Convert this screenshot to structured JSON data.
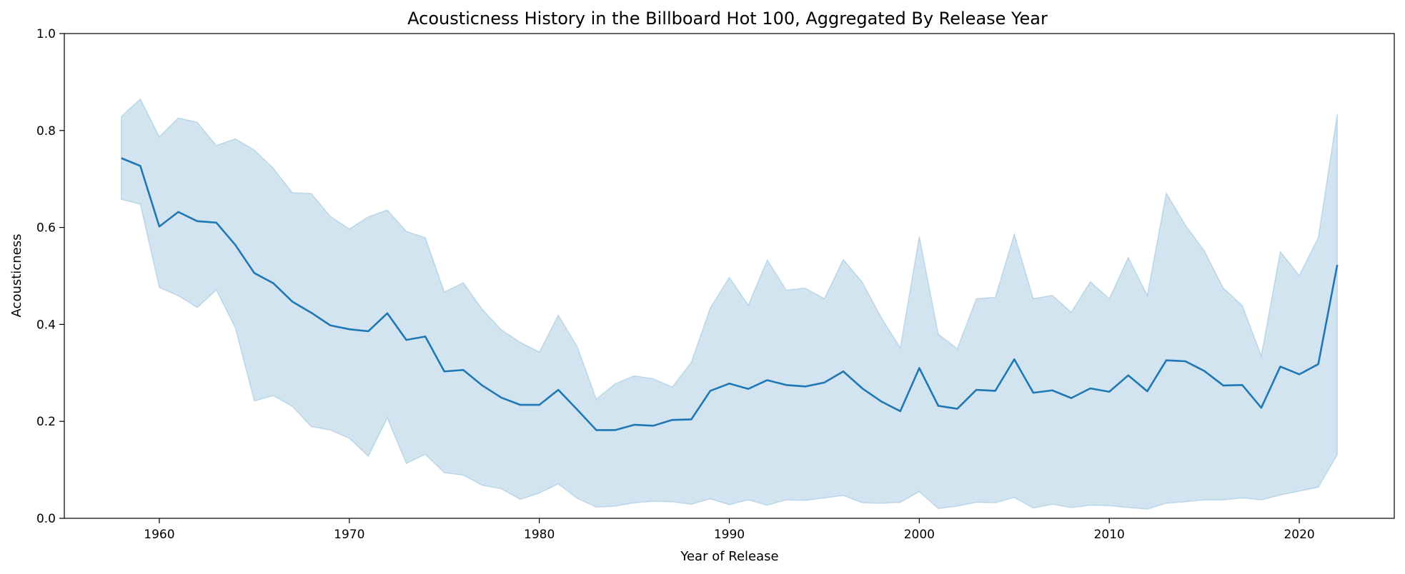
{
  "chart_data": {
    "type": "line",
    "title": "Acousticness History in the Billboard Hot 100, Aggregated By Release Year",
    "xlabel": "Year of Release",
    "ylabel": "Acousticness",
    "xlim": [
      1955,
      2025
    ],
    "ylim": [
      0.0,
      1.0
    ],
    "xticks": [
      1960,
      1970,
      1980,
      1990,
      2000,
      2010,
      2020
    ],
    "yticks": [
      0.0,
      0.2,
      0.4,
      0.6,
      0.8,
      1.0
    ],
    "ytick_labels": [
      "0.0",
      "0.2",
      "0.4",
      "0.6",
      "0.8",
      "1.0"
    ],
    "grid": false,
    "colors": {
      "line": "#1f77b4",
      "band": "#1f77b4"
    },
    "x": [
      1958,
      1959,
      1960,
      1961,
      1962,
      1963,
      1964,
      1965,
      1966,
      1967,
      1968,
      1969,
      1970,
      1971,
      1972,
      1973,
      1974,
      1975,
      1976,
      1977,
      1978,
      1979,
      1980,
      1981,
      1982,
      1983,
      1984,
      1985,
      1986,
      1987,
      1988,
      1989,
      1990,
      1991,
      1992,
      1993,
      1994,
      1995,
      1996,
      1997,
      1998,
      1999,
      2000,
      2001,
      2002,
      2003,
      2004,
      2005,
      2006,
      2007,
      2008,
      2009,
      2010,
      2011,
      2012,
      2013,
      2014,
      2015,
      2016,
      2017,
      2018,
      2019,
      2020,
      2021,
      2022
    ],
    "series": [
      {
        "values": [
          0.743,
          0.727,
          0.602,
          0.632,
          0.613,
          0.61,
          0.564,
          0.506,
          0.485,
          0.447,
          0.424,
          0.398,
          0.39,
          0.386,
          0.423,
          0.368,
          0.375,
          0.303,
          0.306,
          0.274,
          0.249,
          0.234,
          0.234,
          0.265,
          0.224,
          0.182,
          0.182,
          0.193,
          0.191,
          0.203,
          0.204,
          0.263,
          0.278,
          0.267,
          0.285,
          0.275,
          0.272,
          0.28,
          0.303,
          0.268,
          0.241,
          0.221,
          0.31,
          0.232,
          0.226,
          0.265,
          0.263,
          0.328,
          0.259,
          0.264,
          0.248,
          0.268,
          0.261,
          0.295,
          0.262,
          0.326,
          0.324,
          0.304,
          0.274,
          0.275,
          0.228,
          0.313,
          0.297,
          0.318,
          0.523
        ],
        "lower": [
          0.658,
          0.648,
          0.476,
          0.459,
          0.435,
          0.471,
          0.393,
          0.242,
          0.253,
          0.231,
          0.189,
          0.182,
          0.165,
          0.128,
          0.207,
          0.113,
          0.132,
          0.094,
          0.089,
          0.068,
          0.061,
          0.039,
          0.052,
          0.071,
          0.041,
          0.023,
          0.025,
          0.032,
          0.035,
          0.034,
          0.029,
          0.04,
          0.028,
          0.038,
          0.027,
          0.038,
          0.037,
          0.042,
          0.047,
          0.032,
          0.031,
          0.033,
          0.055,
          0.02,
          0.025,
          0.033,
          0.032,
          0.043,
          0.021,
          0.029,
          0.022,
          0.027,
          0.026,
          0.022,
          0.019,
          0.031,
          0.034,
          0.038,
          0.038,
          0.042,
          0.038,
          0.048,
          0.056,
          0.064,
          0.131
        ],
        "upper": [
          0.829,
          0.865,
          0.787,
          0.826,
          0.817,
          0.769,
          0.783,
          0.76,
          0.722,
          0.672,
          0.67,
          0.623,
          0.597,
          0.622,
          0.636,
          0.592,
          0.579,
          0.467,
          0.486,
          0.431,
          0.389,
          0.363,
          0.343,
          0.419,
          0.354,
          0.246,
          0.278,
          0.294,
          0.288,
          0.271,
          0.322,
          0.434,
          0.497,
          0.44,
          0.533,
          0.471,
          0.475,
          0.453,
          0.534,
          0.487,
          0.414,
          0.352,
          0.581,
          0.38,
          0.35,
          0.453,
          0.456,
          0.586,
          0.453,
          0.46,
          0.425,
          0.488,
          0.453,
          0.538,
          0.46,
          0.671,
          0.605,
          0.552,
          0.475,
          0.439,
          0.335,
          0.55,
          0.501,
          0.579,
          0.834
        ]
      }
    ]
  }
}
